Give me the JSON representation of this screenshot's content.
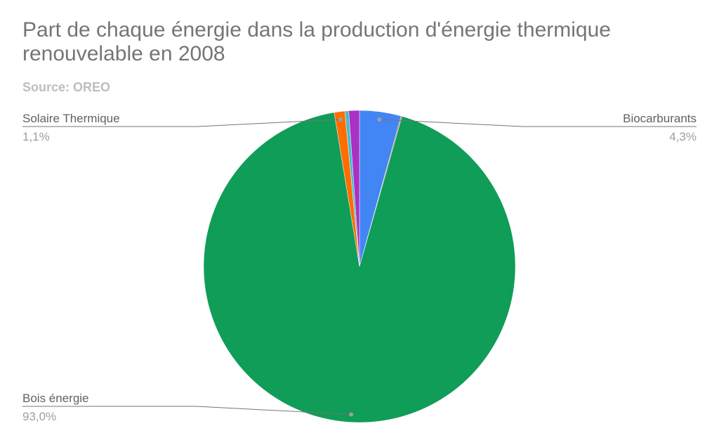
{
  "chart_data": {
    "type": "pie",
    "title": "Part de chaque énergie dans la production d'énergie thermique renouvelable en 2008",
    "subtitle": "Source: OREO",
    "categories": [
      "Biocarburants",
      null,
      "Bois énergie",
      "Solaire Thermique",
      null,
      null
    ],
    "values": [
      4.3,
      0.1,
      93.0,
      1.1,
      0.4,
      1.1
    ],
    "value_labels": [
      "4,3%",
      null,
      "93,0%",
      "1,1%",
      null,
      null
    ],
    "colors": [
      "#4285f4",
      "#b0703a",
      "#0f9d58",
      "#ff6d01",
      "#46bdc6",
      "#ab30c4"
    ]
  }
}
